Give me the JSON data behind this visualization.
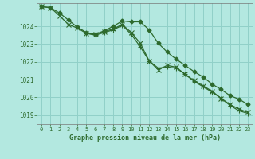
{
  "background_color": "#b3e8e0",
  "grid_color": "#90d0c8",
  "line_color": "#2d6a2d",
  "text_color": "#2d6a2d",
  "xlabel": "Graphe pression niveau de la mer (hPa)",
  "ylim": [
    1018.5,
    1025.3
  ],
  "xlim": [
    -0.5,
    23.5
  ],
  "yticks": [
    1019,
    1020,
    1021,
    1022,
    1023,
    1024
  ],
  "xticks": [
    0,
    1,
    2,
    3,
    4,
    5,
    6,
    7,
    8,
    9,
    10,
    11,
    12,
    13,
    14,
    15,
    16,
    17,
    18,
    19,
    20,
    21,
    22,
    23
  ],
  "series1_x": [
    0,
    1,
    2,
    3,
    4,
    5,
    6,
    7,
    8,
    9,
    10,
    11,
    12,
    13,
    14,
    15,
    16,
    17,
    18,
    19,
    20,
    21,
    22,
    23
  ],
  "series1_y": [
    1025.1,
    1025.05,
    1024.75,
    1024.35,
    1023.95,
    1023.65,
    1023.55,
    1023.75,
    1024.0,
    1024.3,
    1024.25,
    1024.25,
    1023.8,
    1023.05,
    1022.55,
    1022.15,
    1021.8,
    1021.45,
    1021.15,
    1020.75,
    1020.45,
    1020.1,
    1019.9,
    1019.6
  ],
  "series2_x": [
    0,
    1,
    2,
    3,
    4,
    5,
    6,
    7,
    8,
    9,
    10,
    11,
    12,
    13,
    14,
    15,
    16,
    17,
    18,
    19,
    20,
    21,
    22,
    23
  ],
  "series2_y": [
    1025.1,
    1025.05,
    1024.6,
    1024.1,
    1023.9,
    1023.6,
    1023.55,
    1023.7,
    1023.85,
    1024.1,
    1023.65,
    1023.05,
    1022.05,
    1021.55,
    1021.8,
    1021.7,
    1021.3,
    1020.95,
    1020.65,
    1020.35,
    1019.95,
    1019.6,
    1019.35,
    1019.15
  ],
  "series3_x": [
    5,
    6,
    7,
    8,
    9,
    10,
    11,
    12,
    13,
    14,
    15,
    16,
    17,
    18,
    19,
    20,
    21,
    22,
    23
  ],
  "series3_y": [
    1023.6,
    1023.5,
    1023.65,
    1023.8,
    1024.05,
    1023.55,
    1022.85,
    1022.05,
    1021.65,
    1021.7,
    1021.65,
    1021.3,
    1020.9,
    1020.6,
    1020.3,
    1019.95,
    1019.55,
    1019.25,
    1019.1
  ]
}
